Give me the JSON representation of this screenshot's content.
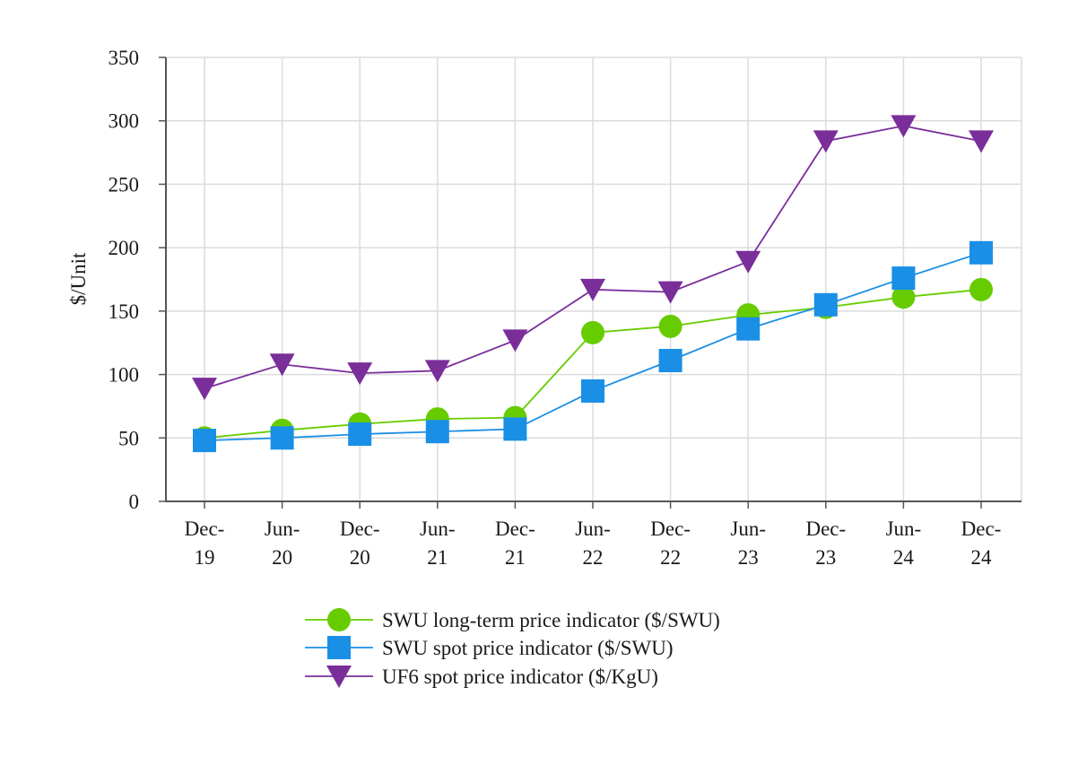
{
  "chart_data": {
    "type": "line",
    "title": "",
    "xlabel": "",
    "ylabel": "$/Unit",
    "ylim": [
      0,
      350
    ],
    "yticks": [
      0,
      50,
      100,
      150,
      200,
      250,
      300,
      350
    ],
    "categories": [
      [
        "Dec-",
        "19"
      ],
      [
        "Jun-",
        "20"
      ],
      [
        "Dec-",
        "20"
      ],
      [
        "Jun-",
        "21"
      ],
      [
        "Dec-",
        "21"
      ],
      [
        "Jun-",
        "22"
      ],
      [
        "Dec-",
        "22"
      ],
      [
        "Jun-",
        "23"
      ],
      [
        "Dec-",
        "23"
      ],
      [
        "Jun-",
        "24"
      ],
      [
        "Dec-",
        "24"
      ]
    ],
    "grid": true,
    "legend_position": "bottom-center",
    "series": [
      {
        "name": "SWU long-term price indicator ($/SWU)",
        "marker": "circle",
        "color": "#66cc00",
        "values": [
          50,
          56,
          61,
          65,
          66,
          133,
          138,
          147,
          153,
          161,
          167
        ]
      },
      {
        "name": "SWU spot price indicator ($/SWU)",
        "marker": "square",
        "color": "#1a8fe6",
        "values": [
          48,
          50,
          53,
          55,
          57,
          87,
          111,
          136,
          155,
          176,
          196
        ]
      },
      {
        "name": "UF6 spot price indicator ($/KgU)",
        "marker": "triangle-down",
        "color": "#7a2e9a",
        "values": [
          89,
          108,
          101,
          103,
          127,
          167,
          165,
          189,
          284,
          296,
          284
        ]
      }
    ]
  }
}
